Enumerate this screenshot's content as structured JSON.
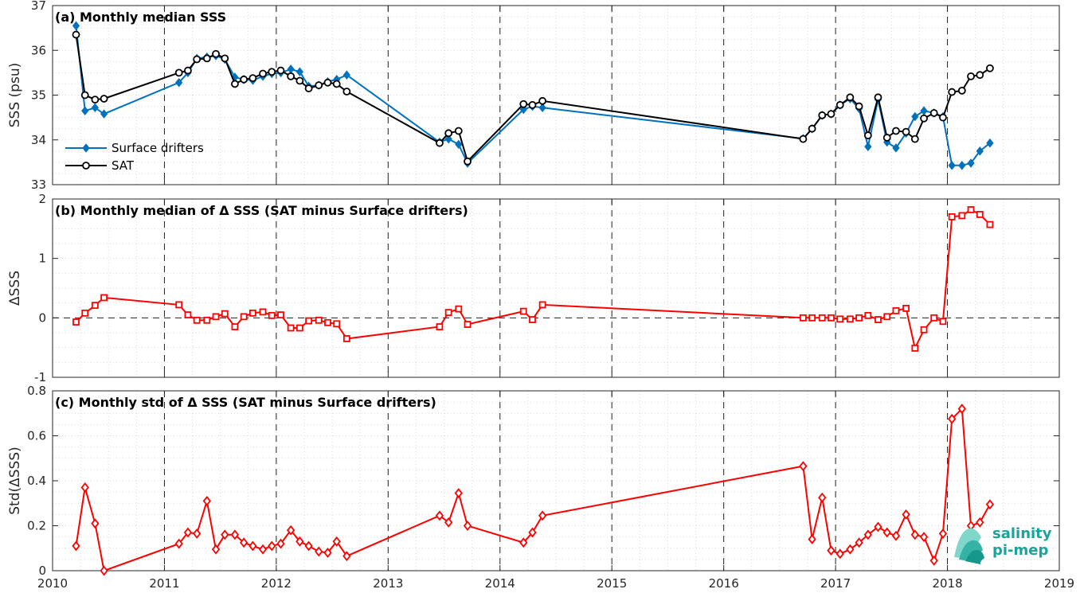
{
  "x_ticks": [
    "2010",
    "2011",
    "2012",
    "2013",
    "2014",
    "2015",
    "2016",
    "2017",
    "2018",
    "2019"
  ],
  "vlines": [
    "2011",
    "2012",
    "2013",
    "2014",
    "2015",
    "2016",
    "2017",
    "2018"
  ],
  "logo": {
    "line1": "salinity",
    "line2": "pi-mep"
  },
  "colors": {
    "drifters": "#0072bd",
    "sat": "#000000",
    "delta": "#ff0000",
    "axis": "#262626",
    "grid": "#d9d9d9",
    "logo": "#1aa398"
  },
  "chart_data": [
    {
      "type": "line",
      "title": "(a) Monthly median SSS",
      "ylabel": "SSS (psu)",
      "xlabel": "",
      "xlim": [
        2010,
        2019
      ],
      "ylim": [
        33,
        37
      ],
      "y_ticks": [
        "33",
        "34",
        "35",
        "36",
        "37"
      ],
      "grid": true,
      "legend": "lower-left",
      "series": [
        {
          "name": "Surface drifters",
          "marker": "diamond",
          "color": "#0072bd",
          "x": [
            2010.21,
            2010.29,
            2010.38,
            2010.46,
            2011.13,
            2011.21,
            2011.29,
            2011.38,
            2011.46,
            2011.54,
            2011.63,
            2011.71,
            2011.79,
            2011.88,
            2011.96,
            2012.04,
            2012.13,
            2012.21,
            2012.29,
            2012.38,
            2012.46,
            2012.54,
            2012.63,
            2013.46,
            2013.54,
            2013.63,
            2013.71,
            2014.21,
            2014.29,
            2014.38,
            2016.71,
            2016.79,
            2016.88,
            2016.96,
            2017.04,
            2017.13,
            2017.21,
            2017.29,
            2017.38,
            2017.46,
            2017.54,
            2017.63,
            2017.71,
            2017.79,
            2017.88,
            2017.96,
            2018.04,
            2018.13,
            2018.21,
            2018.29,
            2018.38
          ],
          "y": [
            36.55,
            34.65,
            34.72,
            34.58,
            35.28,
            35.5,
            35.82,
            35.85,
            35.88,
            35.8,
            35.4,
            35.35,
            35.33,
            35.42,
            35.48,
            35.5,
            35.58,
            35.52,
            35.2,
            35.22,
            35.3,
            35.35,
            35.45,
            33.95,
            34.02,
            33.9,
            33.48,
            34.68,
            34.75,
            34.72,
            34.03,
            34.25,
            34.55,
            34.58,
            34.78,
            34.92,
            34.7,
            33.85,
            34.9,
            33.95,
            33.82,
            34.15,
            34.52,
            34.65,
            34.6,
            34.52,
            33.43,
            33.43,
            33.48,
            33.75,
            33.93
          ]
        },
        {
          "name": "SAT",
          "marker": "circle",
          "color": "#000000",
          "x": [
            2010.21,
            2010.29,
            2010.38,
            2010.46,
            2011.13,
            2011.21,
            2011.29,
            2011.38,
            2011.46,
            2011.54,
            2011.63,
            2011.71,
            2011.79,
            2011.88,
            2011.96,
            2012.04,
            2012.13,
            2012.21,
            2012.29,
            2012.38,
            2012.46,
            2012.54,
            2012.63,
            2013.46,
            2013.54,
            2013.63,
            2013.71,
            2014.21,
            2014.29,
            2014.38,
            2016.71,
            2016.79,
            2016.88,
            2016.96,
            2017.04,
            2017.13,
            2017.21,
            2017.29,
            2017.38,
            2017.46,
            2017.54,
            2017.63,
            2017.71,
            2017.79,
            2017.88,
            2017.96,
            2018.04,
            2018.13,
            2018.21,
            2018.29,
            2018.38
          ],
          "y": [
            36.35,
            35.0,
            34.9,
            34.92,
            35.5,
            35.55,
            35.8,
            35.82,
            35.92,
            35.82,
            35.25,
            35.35,
            35.38,
            35.48,
            35.52,
            35.55,
            35.42,
            35.32,
            35.15,
            35.22,
            35.28,
            35.25,
            35.08,
            33.93,
            34.15,
            34.2,
            33.52,
            34.8,
            34.78,
            34.87,
            34.02,
            34.25,
            34.55,
            34.58,
            34.78,
            34.95,
            34.75,
            34.1,
            34.95,
            34.05,
            34.2,
            34.18,
            34.02,
            34.48,
            34.6,
            34.5,
            35.07,
            35.1,
            35.42,
            35.45,
            35.6
          ]
        }
      ]
    },
    {
      "type": "line",
      "title": "(b) Monthly median of Δ SSS (SAT minus Surface drifters)",
      "ylabel": "ΔSSS",
      "xlabel": "",
      "xlim": [
        2010,
        2019
      ],
      "ylim": [
        -1,
        2
      ],
      "y_ticks": [
        "-1",
        "0",
        "1",
        "2"
      ],
      "zero_line": true,
      "grid": true,
      "series": [
        {
          "marker": "square",
          "color": "#ff0000",
          "x": [
            2010.21,
            2010.29,
            2010.38,
            2010.46,
            2011.13,
            2011.21,
            2011.29,
            2011.38,
            2011.46,
            2011.54,
            2011.63,
            2011.71,
            2011.79,
            2011.88,
            2011.96,
            2012.04,
            2012.13,
            2012.21,
            2012.29,
            2012.38,
            2012.46,
            2012.54,
            2012.63,
            2013.46,
            2013.54,
            2013.63,
            2013.71,
            2014.21,
            2014.29,
            2014.38,
            2016.71,
            2016.79,
            2016.88,
            2016.96,
            2017.04,
            2017.13,
            2017.21,
            2017.29,
            2017.38,
            2017.46,
            2017.54,
            2017.63,
            2017.71,
            2017.79,
            2017.88,
            2017.96,
            2018.04,
            2018.13,
            2018.21,
            2018.29,
            2018.38
          ],
          "y": [
            -0.07,
            0.08,
            0.21,
            0.34,
            0.22,
            0.05,
            -0.04,
            -0.04,
            0.02,
            0.07,
            -0.15,
            0.02,
            0.08,
            0.1,
            0.04,
            0.05,
            -0.17,
            -0.17,
            -0.05,
            -0.04,
            -0.08,
            -0.1,
            -0.35,
            -0.15,
            0.09,
            0.15,
            -0.11,
            0.11,
            -0.03,
            0.22,
            0.0,
            0.0,
            0.0,
            0.0,
            -0.02,
            -0.02,
            0.0,
            0.04,
            -0.03,
            0.02,
            0.12,
            0.16,
            -0.51,
            -0.2,
            0.0,
            -0.06,
            1.7,
            1.72,
            1.82,
            1.74,
            1.57
          ]
        }
      ]
    },
    {
      "type": "line",
      "title": "(c) Monthly std of Δ SSS (SAT minus Surface drifters)",
      "ylabel": "Std(ΔSSS)",
      "xlabel": "",
      "xlim": [
        2010,
        2019
      ],
      "ylim": [
        0,
        0.8
      ],
      "y_ticks": [
        "0",
        "0.2",
        "0.4",
        "0.6",
        "0.8"
      ],
      "grid": true,
      "series": [
        {
          "marker": "diamond",
          "color": "#ff0000",
          "x": [
            2010.21,
            2010.29,
            2010.38,
            2010.46,
            2011.13,
            2011.21,
            2011.29,
            2011.38,
            2011.46,
            2011.54,
            2011.63,
            2011.71,
            2011.79,
            2011.88,
            2011.96,
            2012.04,
            2012.13,
            2012.21,
            2012.29,
            2012.38,
            2012.46,
            2012.54,
            2012.63,
            2013.46,
            2013.54,
            2013.63,
            2013.71,
            2014.21,
            2014.29,
            2014.38,
            2016.71,
            2016.79,
            2016.88,
            2016.96,
            2017.04,
            2017.13,
            2017.21,
            2017.29,
            2017.38,
            2017.46,
            2017.54,
            2017.63,
            2017.71,
            2017.79,
            2017.88,
            2017.96,
            2018.04,
            2018.13,
            2018.21,
            2018.29,
            2018.38
          ],
          "y": [
            0.11,
            0.37,
            0.21,
            0.0,
            0.12,
            0.17,
            0.165,
            0.31,
            0.095,
            0.16,
            0.16,
            0.125,
            0.11,
            0.095,
            0.11,
            0.12,
            0.18,
            0.13,
            0.11,
            0.085,
            0.08,
            0.13,
            0.065,
            0.245,
            0.215,
            0.345,
            0.2,
            0.125,
            0.17,
            0.245,
            0.465,
            0.14,
            0.325,
            0.09,
            0.075,
            0.095,
            0.125,
            0.16,
            0.195,
            0.17,
            0.155,
            0.25,
            0.16,
            0.15,
            0.045,
            0.165,
            0.675,
            0.72,
            0.2,
            0.215,
            0.295
          ]
        }
      ]
    }
  ]
}
